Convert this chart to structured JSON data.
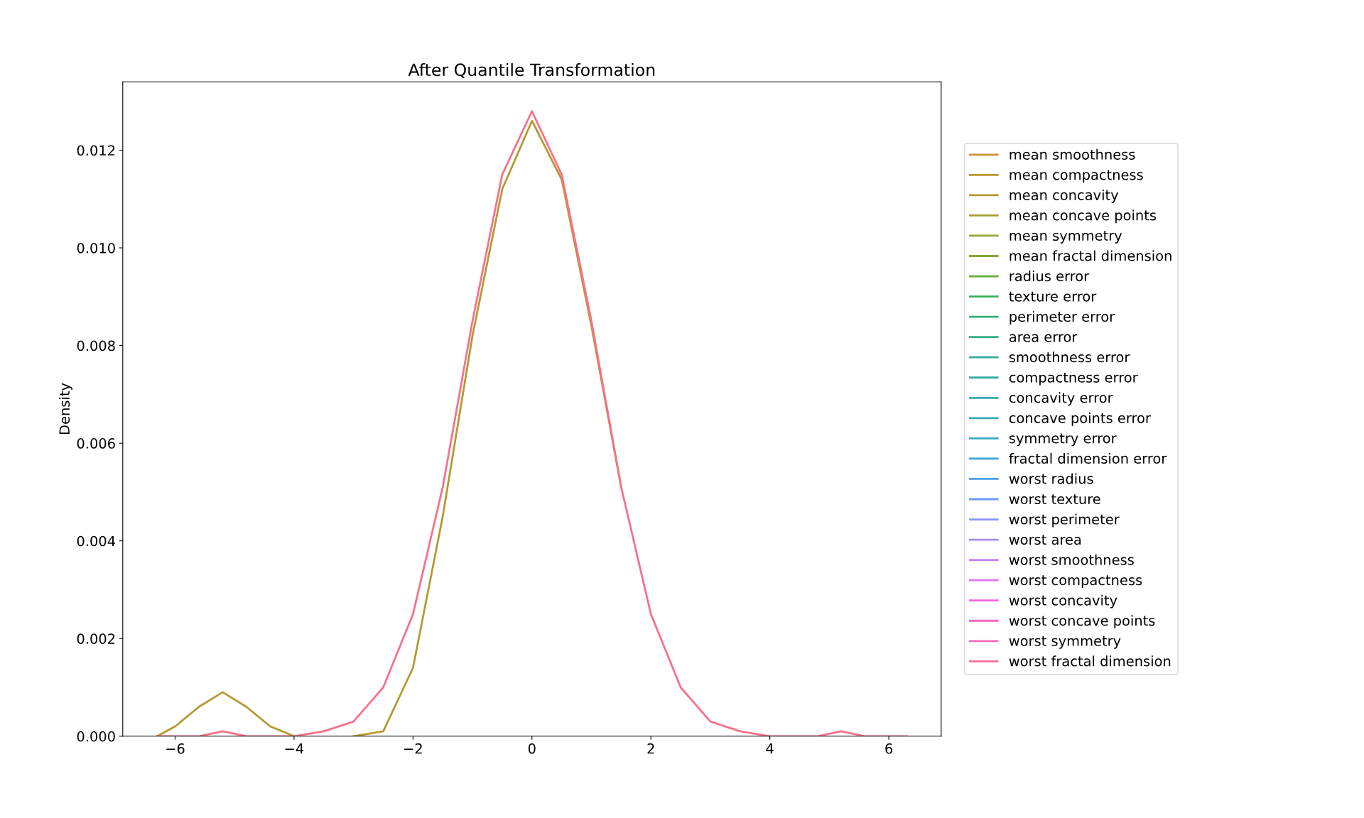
{
  "chart_data": {
    "type": "line",
    "title": "After Quantile Transformation",
    "ylabel": "Density",
    "x": [
      -6.3,
      -6,
      -5.6,
      -5.2,
      -4.8,
      -4.4,
      -4,
      -3.5,
      -3,
      -2.5,
      -2,
      -1.5,
      -1,
      -0.5,
      0,
      0.5,
      1,
      1.5,
      2,
      2.5,
      3,
      3.5,
      4,
      4.5,
      4.8,
      5.2,
      5.6,
      6,
      6.3
    ],
    "xlim": [
      -6.88,
      6.88
    ],
    "xticks": [
      {
        "value": -6,
        "label": "−6"
      },
      {
        "value": -4,
        "label": "−4"
      },
      {
        "value": -2,
        "label": "−2"
      },
      0,
      2,
      4,
      6
    ],
    "ylim": [
      0,
      0.0134
    ],
    "yticks": [
      {
        "value": 0,
        "label": "0.000"
      },
      {
        "value": 0.002,
        "label": "0.002"
      },
      {
        "value": 0.004,
        "label": "0.004"
      },
      {
        "value": 0.006,
        "label": "0.006"
      },
      {
        "value": 0.008,
        "label": "0.008"
      },
      {
        "value": 0.01,
        "label": "0.010"
      },
      {
        "value": 0.012,
        "label": "0.012"
      }
    ],
    "grid": false,
    "legend": "right",
    "series": [
      {
        "color": "#f77189",
        "values": [
          0,
          0,
          0,
          0.0001,
          0,
          0,
          0,
          0.0001,
          0.0003,
          0.001,
          0.0025,
          0.0051,
          0.0085,
          0.0115,
          0.0128,
          0.0115,
          0.0085,
          0.0051,
          0.0025,
          0.001,
          0.0003,
          0.0001,
          0,
          0,
          0,
          0.0001,
          0,
          0,
          0
        ]
      },
      {
        "color": "#f7754f",
        "values": [
          null,
          null,
          null,
          null,
          null,
          null,
          null,
          null,
          null,
          null,
          null,
          null,
          null,
          null,
          null,
          null,
          null,
          null,
          null,
          null,
          null,
          null,
          null,
          null,
          null,
          null,
          null,
          null,
          null
        ]
      },
      {
        "color": "#e98132",
        "values": [
          null,
          null,
          null,
          null,
          null,
          null,
          null,
          null,
          null,
          null,
          null,
          null,
          null,
          null,
          null,
          null,
          null,
          null,
          null,
          null,
          null,
          null,
          null,
          null,
          null,
          null,
          null,
          null,
          null
        ]
      },
      {
        "color": "#dc8932",
        "values": [
          null,
          null,
          null,
          null,
          null,
          null,
          null,
          null,
          null,
          null,
          null,
          null,
          null,
          null,
          null,
          null,
          null,
          null,
          null,
          null,
          null,
          null,
          null,
          null,
          null,
          null,
          null,
          null,
          null
        ]
      },
      {
        "name": "mean smoothness",
        "color": "#ce9032",
        "values": [
          null,
          null,
          null,
          null,
          null,
          null,
          null,
          null,
          null,
          null,
          null,
          null,
          null,
          null,
          null,
          null,
          null,
          null,
          null,
          null,
          null,
          null,
          null,
          null,
          null,
          null,
          null,
          null,
          null
        ]
      },
      {
        "name": "mean compactness",
        "color": "#c29533",
        "values": [
          null,
          null,
          null,
          null,
          null,
          null,
          null,
          null,
          null,
          null,
          null,
          null,
          null,
          null,
          null,
          null,
          null,
          null,
          null,
          null,
          null,
          null,
          null,
          null,
          null,
          null,
          null,
          null,
          null
        ]
      },
      {
        "name": "mean concavity",
        "color": "#b59a32",
        "values": [
          0,
          0.0002,
          0.0006,
          0.0009,
          0.0006,
          0.0002,
          0,
          null,
          0,
          0.0001,
          0.0014,
          0.0045,
          0.0082,
          0.0112,
          0.0126,
          0.0114,
          0.0084,
          0.0051,
          null,
          null,
          null,
          null,
          null,
          null,
          null,
          null,
          null,
          null,
          null
        ]
      },
      {
        "name": "mean concave points",
        "color": "#a69f31",
        "values": [
          null,
          null,
          null,
          null,
          null,
          null,
          null,
          null,
          null,
          null,
          null,
          null,
          null,
          null,
          null,
          null,
          null,
          null,
          null,
          null,
          null,
          null,
          null,
          null,
          null,
          null,
          null,
          null,
          null
        ]
      },
      {
        "name": "mean symmetry",
        "color": "#97a431",
        "values": [
          null,
          null,
          null,
          null,
          null,
          null,
          null,
          null,
          null,
          null,
          null,
          null,
          null,
          null,
          null,
          null,
          null,
          null,
          null,
          null,
          null,
          null,
          null,
          null,
          null,
          null,
          null,
          null,
          null
        ]
      },
      {
        "name": "mean fractal dimension",
        "color": "#86a831",
        "values": [
          null,
          null,
          null,
          null,
          null,
          null,
          null,
          null,
          null,
          null,
          null,
          null,
          null,
          null,
          null,
          null,
          null,
          null,
          null,
          null,
          null,
          null,
          null,
          null,
          null,
          null,
          null,
          null,
          null
        ]
      },
      {
        "name": "radius error",
        "color": "#5fae32",
        "values": [
          null,
          null,
          null,
          null,
          null,
          null,
          null,
          null,
          null,
          null,
          null,
          null,
          null,
          null,
          null,
          null,
          null,
          null,
          null,
          null,
          null,
          null,
          null,
          null,
          null,
          null,
          null,
          null,
          null
        ]
      },
      {
        "name": "texture error",
        "color": "#33b05a",
        "values": [
          null,
          null,
          null,
          null,
          null,
          null,
          null,
          null,
          null,
          null,
          null,
          null,
          null,
          null,
          null,
          null,
          null,
          null,
          null,
          null,
          null,
          null,
          null,
          null,
          null,
          null,
          null,
          null,
          null
        ]
      },
      {
        "name": "perimeter error",
        "color": "#33af75",
        "values": [
          null,
          null,
          null,
          null,
          null,
          null,
          null,
          null,
          null,
          null,
          null,
          null,
          null,
          null,
          null,
          null,
          null,
          null,
          null,
          null,
          null,
          null,
          null,
          null,
          null,
          null,
          null,
          null,
          null
        ]
      },
      {
        "name": "area error",
        "color": "#34ae89",
        "values": [
          null,
          null,
          null,
          null,
          null,
          null,
          null,
          null,
          null,
          null,
          null,
          null,
          null,
          null,
          null,
          null,
          null,
          null,
          null,
          null,
          null,
          null,
          null,
          null,
          null,
          null,
          null,
          null,
          null
        ]
      },
      {
        "name": "smoothness error",
        "color": "#35ae98",
        "values": [
          null,
          null,
          null,
          null,
          null,
          null,
          null,
          null,
          null,
          null,
          null,
          null,
          null,
          null,
          null,
          null,
          null,
          null,
          null,
          null,
          null,
          null,
          null,
          null,
          null,
          null,
          null,
          null,
          null
        ]
      },
      {
        "name": "compactness error",
        "color": "#36ada4",
        "values": [
          null,
          null,
          null,
          null,
          null,
          null,
          null,
          null,
          null,
          null,
          null,
          null,
          null,
          null,
          null,
          null,
          null,
          null,
          null,
          null,
          null,
          null,
          null,
          null,
          null,
          null,
          null,
          null,
          null
        ]
      },
      {
        "name": "concavity error",
        "color": "#37abae",
        "values": [
          null,
          null,
          null,
          null,
          null,
          null,
          null,
          null,
          null,
          null,
          null,
          null,
          null,
          null,
          null,
          null,
          null,
          null,
          null,
          null,
          null,
          null,
          null,
          null,
          null,
          null,
          null,
          null,
          null
        ]
      },
      {
        "name": "concave points error",
        "color": "#38aab8",
        "values": [
          null,
          null,
          null,
          null,
          null,
          null,
          null,
          null,
          null,
          null,
          null,
          null,
          null,
          null,
          null,
          null,
          null,
          null,
          null,
          null,
          null,
          null,
          null,
          null,
          null,
          null,
          null,
          null,
          null
        ]
      },
      {
        "name": "symmetry error",
        "color": "#38a9c5",
        "values": [
          null,
          null,
          null,
          null,
          null,
          null,
          null,
          null,
          null,
          null,
          null,
          null,
          null,
          null,
          null,
          null,
          null,
          null,
          null,
          null,
          null,
          null,
          null,
          null,
          null,
          null,
          null,
          null,
          null
        ]
      },
      {
        "name": "fractal dimension error",
        "color": "#3ba3d3",
        "values": [
          null,
          null,
          null,
          null,
          null,
          null,
          null,
          null,
          null,
          null,
          null,
          null,
          null,
          null,
          null,
          null,
          null,
          null,
          null,
          null,
          null,
          null,
          null,
          null,
          null,
          null,
          null,
          null,
          null
        ]
      },
      {
        "name": "worst radius",
        "color": "#48a0ec",
        "values": [
          null,
          null,
          null,
          null,
          null,
          null,
          null,
          null,
          null,
          null,
          null,
          null,
          null,
          null,
          null,
          null,
          null,
          null,
          null,
          null,
          null,
          null,
          null,
          null,
          null,
          null,
          null,
          null,
          null
        ]
      },
      {
        "name": "worst texture",
        "color": "#6e9af4",
        "values": [
          null,
          null,
          null,
          null,
          null,
          null,
          null,
          null,
          null,
          null,
          null,
          null,
          null,
          null,
          null,
          null,
          null,
          null,
          null,
          null,
          null,
          null,
          null,
          null,
          null,
          null,
          null,
          null,
          null
        ]
      },
      {
        "name": "worst perimeter",
        "color": "#8a94f4",
        "values": [
          null,
          null,
          null,
          null,
          null,
          null,
          null,
          null,
          null,
          null,
          null,
          null,
          null,
          null,
          null,
          null,
          null,
          null,
          null,
          null,
          null,
          null,
          null,
          null,
          null,
          null,
          null,
          null,
          null
        ]
      },
      {
        "name": "worst area",
        "color": "#a48cf4",
        "values": [
          null,
          null,
          null,
          null,
          null,
          null,
          null,
          null,
          null,
          null,
          null,
          null,
          null,
          null,
          null,
          null,
          null,
          null,
          null,
          null,
          null,
          null,
          null,
          null,
          null,
          null,
          null,
          null,
          null
        ]
      },
      {
        "name": "worst smoothness",
        "color": "#c183f4",
        "values": [
          null,
          null,
          null,
          null,
          null,
          null,
          null,
          null,
          null,
          null,
          null,
          null,
          null,
          null,
          null,
          null,
          null,
          null,
          null,
          null,
          null,
          null,
          null,
          null,
          null,
          null,
          null,
          null,
          null
        ]
      },
      {
        "name": "worst compactness",
        "color": "#e473f0",
        "values": [
          null,
          null,
          null,
          null,
          null,
          null,
          null,
          null,
          null,
          null,
          null,
          null,
          null,
          null,
          null,
          null,
          null,
          null,
          null,
          null,
          null,
          null,
          null,
          null,
          null,
          null,
          null,
          null,
          null
        ]
      },
      {
        "name": "worst concavity",
        "color": "#f561dd",
        "values": [
          null,
          null,
          null,
          null,
          null,
          null,
          null,
          null,
          null,
          null,
          null,
          null,
          null,
          null,
          null,
          null,
          null,
          null,
          null,
          null,
          null,
          null,
          null,
          null,
          null,
          null,
          null,
          null,
          null
        ]
      },
      {
        "name": "worst concave points",
        "color": "#f567c8",
        "values": [
          null,
          null,
          null,
          null,
          null,
          null,
          null,
          null,
          null,
          null,
          null,
          null,
          null,
          null,
          null,
          null,
          null,
          null,
          null,
          null,
          null,
          null,
          null,
          null,
          null,
          null,
          null,
          null,
          null
        ]
      },
      {
        "name": "worst symmetry",
        "color": "#f66bb4",
        "values": [
          null,
          null,
          null,
          null,
          null,
          null,
          null,
          null,
          null,
          null,
          null,
          null,
          null,
          null,
          null,
          null,
          null,
          null,
          null,
          null,
          null,
          null,
          null,
          null,
          null,
          null,
          null,
          null,
          null
        ]
      },
      {
        "name": "worst fractal dimension",
        "color": "#f66e9f",
        "values": [
          null,
          null,
          null,
          null,
          null,
          null,
          null,
          null,
          null,
          null,
          null,
          null,
          null,
          null,
          null,
          null,
          null,
          null,
          null,
          null,
          null,
          null,
          null,
          null,
          null,
          null,
          null,
          null,
          null
        ]
      }
    ]
  }
}
